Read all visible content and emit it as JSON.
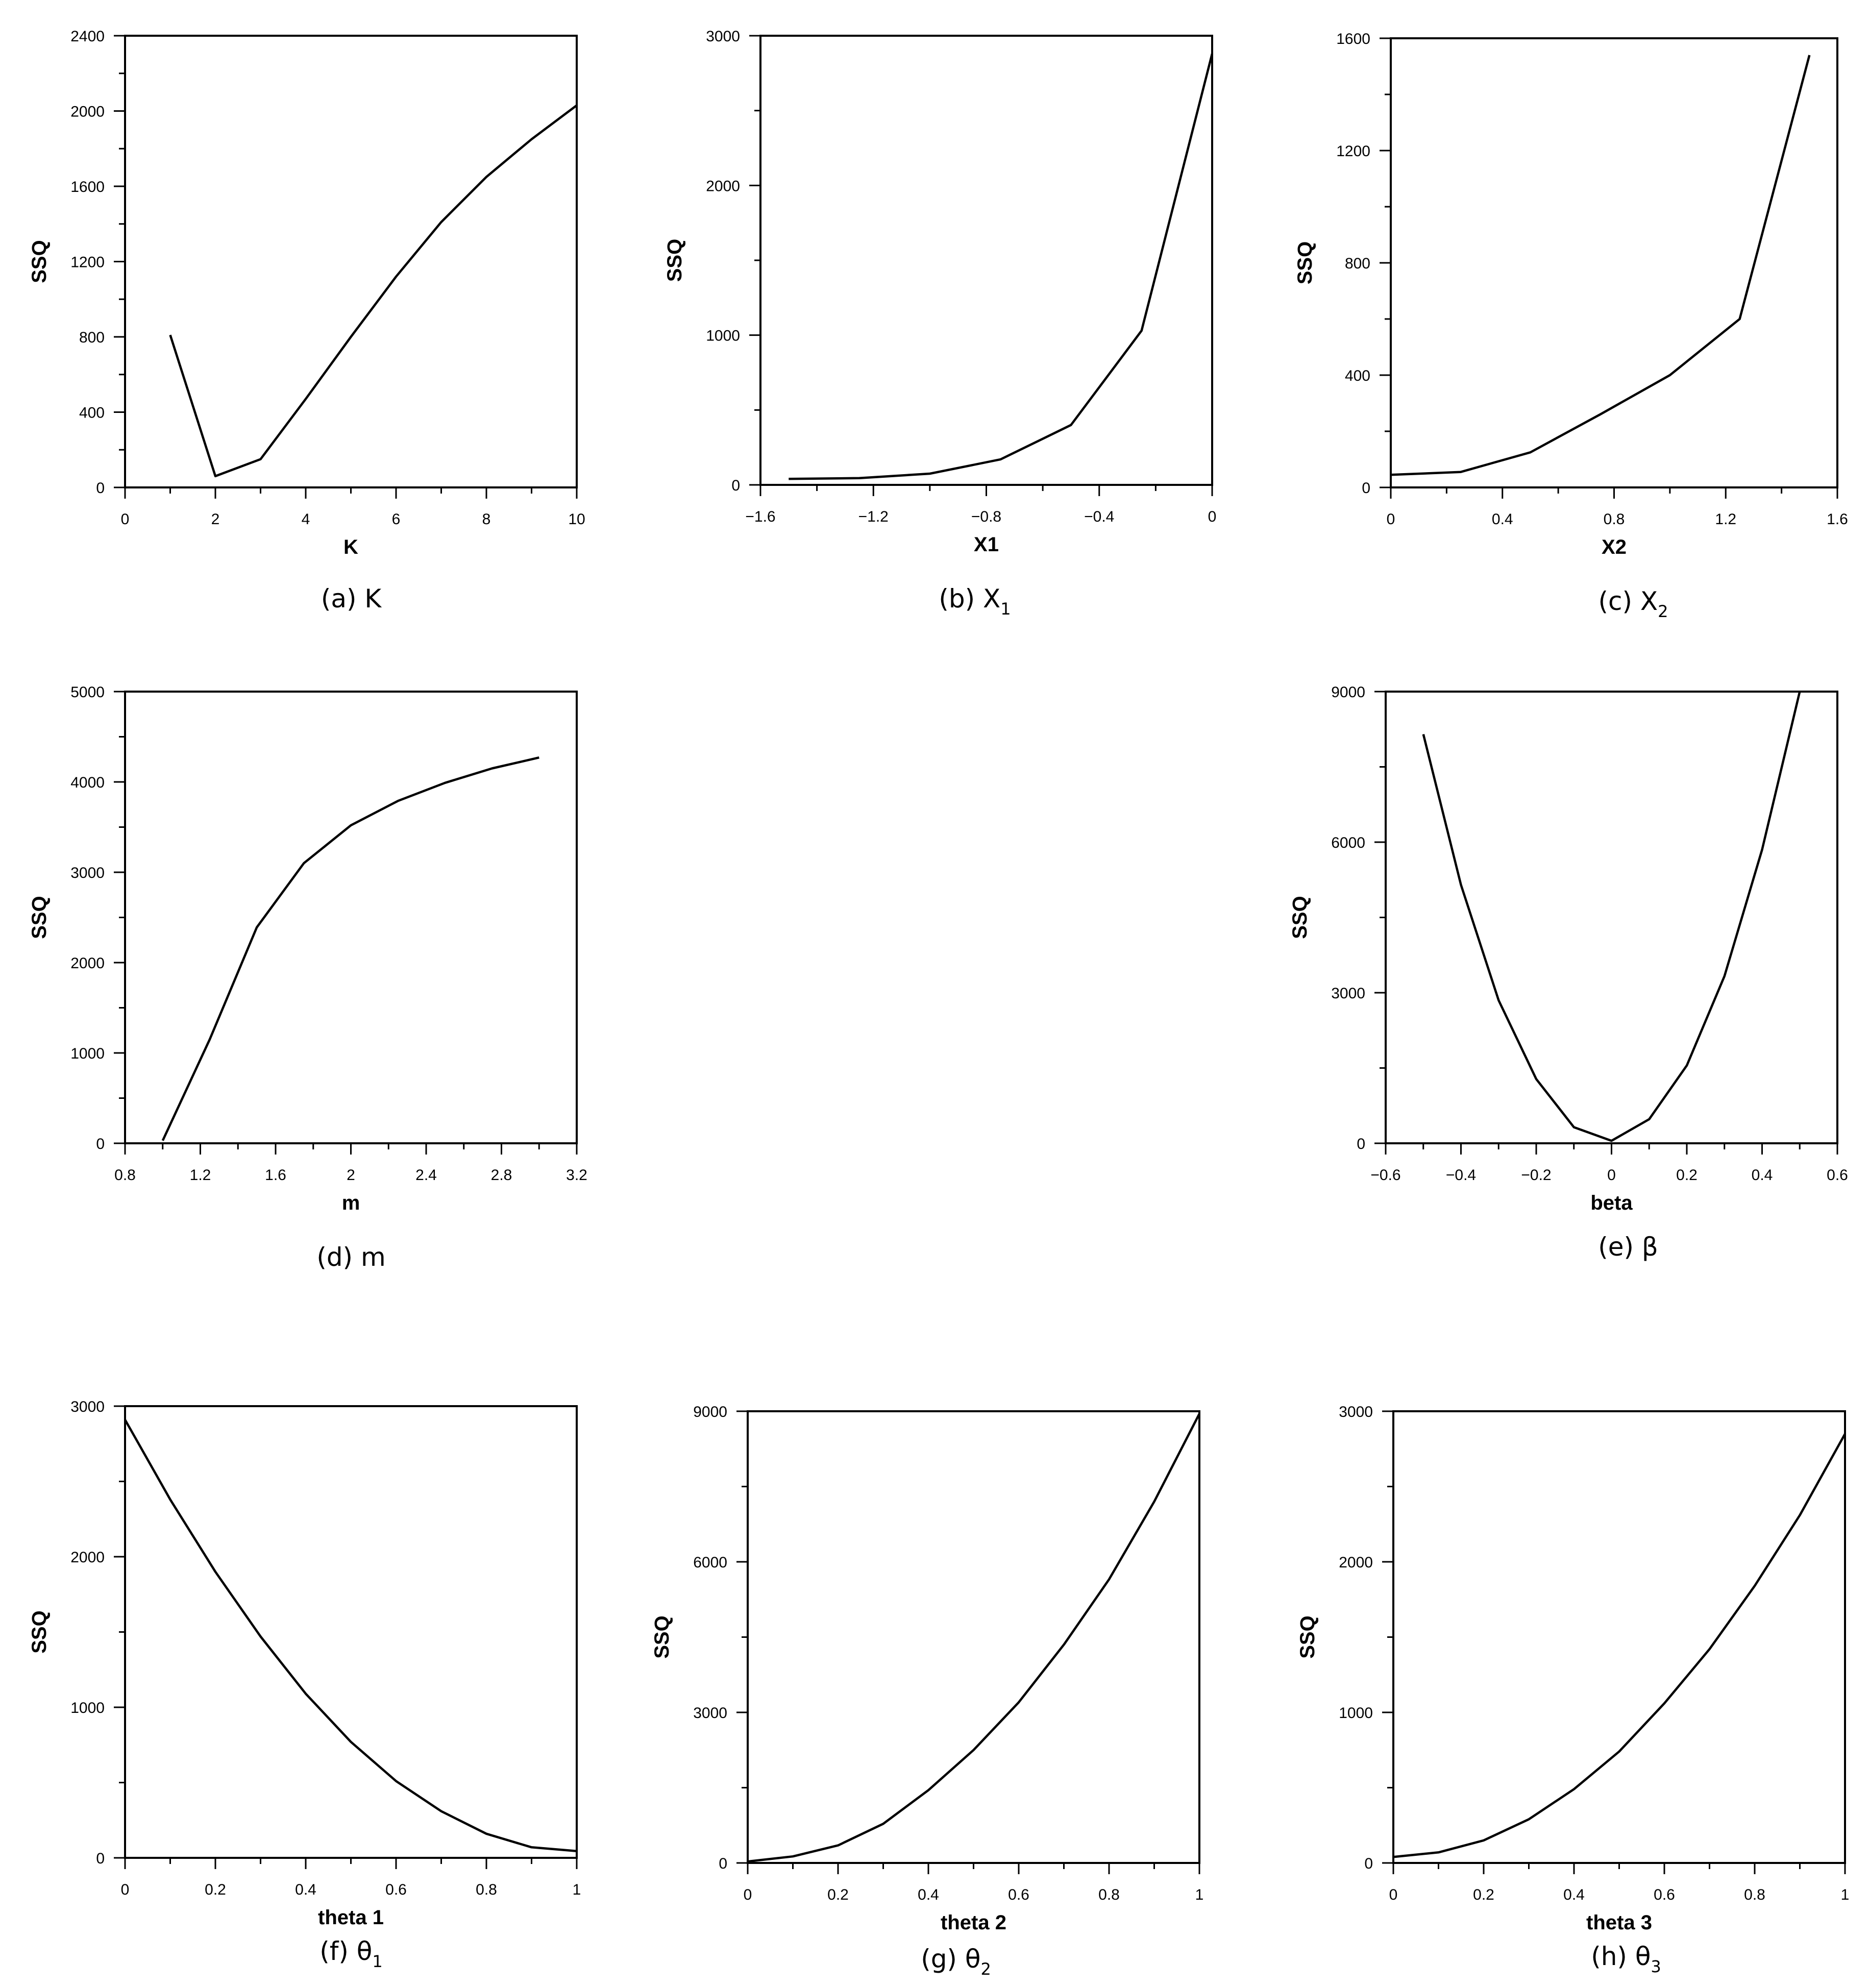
{
  "chart_data": [
    {
      "type": "line",
      "caption": "(a) K",
      "xlabel": "K",
      "ylabel": "SSQ",
      "xlim": [
        0,
        10
      ],
      "ylim": [
        0,
        2400
      ],
      "x_ticks": [
        0,
        2,
        4,
        6,
        8,
        10
      ],
      "x_tick_labels": [
        "0",
        "2",
        "4",
        "6",
        "8",
        "10"
      ],
      "y_ticks": [
        0,
        400,
        800,
        1200,
        1600,
        2000,
        2400
      ],
      "y_tick_labels": [
        "0",
        "400",
        "800",
        "1200",
        "1600",
        "2000",
        "2400"
      ],
      "series": [
        {
          "x": [
            1,
            2,
            3,
            4,
            5,
            6,
            7,
            8,
            9,
            10
          ],
          "y": [
            810,
            60,
            150,
            470,
            800,
            1120,
            1410,
            1650,
            1850,
            2030
          ]
        }
      ]
    },
    {
      "type": "line",
      "caption": "(b) X",
      "caption_sub": "1",
      "xlabel": "X1",
      "ylabel": "SSQ",
      "xlim": [
        -1.6,
        0
      ],
      "ylim": [
        0,
        3000
      ],
      "x_ticks": [
        -1.6,
        -1.2,
        -0.8,
        -0.4,
        0
      ],
      "x_tick_labels": [
        "−1.6",
        "−1.2",
        "−0.8",
        "−0.4",
        "0"
      ],
      "y_ticks": [
        0,
        1000,
        2000,
        3000
      ],
      "y_tick_labels": [
        "0",
        "1000",
        "2000",
        "3000"
      ],
      "series": [
        {
          "x": [
            -1.5,
            -1.25,
            -1.0,
            -0.75,
            -0.5,
            -0.25,
            0
          ],
          "y": [
            40,
            45,
            75,
            170,
            400,
            1030,
            2880
          ]
        }
      ]
    },
    {
      "type": "line",
      "caption": "(c) X",
      "caption_sub": "2",
      "xlabel": "X2",
      "ylabel": "SSQ",
      "xlim": [
        0,
        1.6
      ],
      "ylim": [
        0,
        1600
      ],
      "x_ticks": [
        0,
        0.4,
        0.8,
        1.2,
        1.6
      ],
      "x_tick_labels": [
        "0",
        "0.4",
        "0.8",
        "1.2",
        "1.6"
      ],
      "y_ticks": [
        0,
        400,
        800,
        1200,
        1600
      ],
      "y_tick_labels": [
        "0",
        "400",
        "800",
        "1200",
        "1600"
      ],
      "series": [
        {
          "x": [
            0,
            0.25,
            0.5,
            0.75,
            1.0,
            1.25,
            1.5
          ],
          "y": [
            45,
            55,
            125,
            260,
            400,
            600,
            1540
          ]
        }
      ]
    },
    {
      "type": "line",
      "caption": "(d) m",
      "xlabel": "m",
      "ylabel": "SSQ",
      "xlim": [
        0.8,
        3.2
      ],
      "ylim": [
        0,
        5000
      ],
      "x_ticks": [
        0.8,
        1.2,
        1.6,
        2.0,
        2.4,
        2.8,
        3.2
      ],
      "x_tick_labels": [
        "0.8",
        "1.2",
        "1.6",
        "2",
        "2.4",
        "2.8",
        "3.2"
      ],
      "y_ticks": [
        0,
        1000,
        2000,
        3000,
        4000,
        5000
      ],
      "y_tick_labels": [
        "0",
        "1000",
        "2000",
        "3000",
        "4000",
        "5000"
      ],
      "series": [
        {
          "x": [
            1.0,
            1.25,
            1.5,
            1.75,
            2.0,
            2.25,
            2.5,
            2.75,
            3.0
          ],
          "y": [
            30,
            1150,
            2390,
            3100,
            3520,
            3790,
            3990,
            4150,
            4270
          ]
        }
      ]
    },
    {
      "type": "line",
      "caption": "(e) β",
      "xlabel": "beta",
      "ylabel": "SSQ",
      "xlim": [
        -0.6,
        0.6
      ],
      "ylim": [
        0,
        9000
      ],
      "x_ticks": [
        -0.6,
        -0.4,
        -0.2,
        0,
        0.2,
        0.4,
        0.6
      ],
      "x_tick_labels": [
        "−0.6",
        "−0.4",
        "−0.2",
        "0",
        "0.2",
        "0.4",
        "0.6"
      ],
      "y_ticks": [
        0,
        3000,
        6000,
        9000
      ],
      "y_tick_labels": [
        "0",
        "3000",
        "6000",
        "9000"
      ],
      "series": [
        {
          "x": [
            -0.5,
            -0.4,
            -0.3,
            -0.2,
            -0.1,
            0,
            0.1,
            0.2,
            0.3,
            0.4,
            0.5
          ],
          "y": [
            8150,
            5150,
            2850,
            1280,
            320,
            50,
            480,
            1550,
            3330,
            5850,
            9000
          ]
        }
      ]
    },
    {
      "type": "line",
      "caption": "(f) θ",
      "caption_sub": "1",
      "xlabel": "theta 1",
      "ylabel": "SSQ",
      "xlim": [
        0,
        1
      ],
      "ylim": [
        0,
        3000
      ],
      "x_ticks": [
        0,
        0.2,
        0.4,
        0.6,
        0.8,
        1
      ],
      "x_tick_labels": [
        "0",
        "0.2",
        "0.4",
        "0.6",
        "0.8",
        "1"
      ],
      "y_ticks": [
        0,
        1000,
        2000,
        3000
      ],
      "y_tick_labels": [
        "0",
        "1000",
        "2000",
        "3000"
      ],
      "series": [
        {
          "x": [
            0,
            0.1,
            0.2,
            0.3,
            0.4,
            0.5,
            0.6,
            0.7,
            0.8,
            0.9,
            1.0
          ],
          "y": [
            2910,
            2380,
            1900,
            1470,
            1090,
            770,
            510,
            310,
            160,
            70,
            45
          ]
        }
      ]
    },
    {
      "type": "line",
      "caption": "(g) θ",
      "caption_sub": "2",
      "xlabel": "theta 2",
      "ylabel": "SSQ",
      "xlim": [
        0,
        1
      ],
      "ylim": [
        0,
        9000
      ],
      "x_ticks": [
        0,
        0.2,
        0.4,
        0.6,
        0.8,
        1
      ],
      "x_tick_labels": [
        "0",
        "0.2",
        "0.4",
        "0.6",
        "0.8",
        "1"
      ],
      "y_ticks": [
        0,
        3000,
        6000,
        9000
      ],
      "y_tick_labels": [
        "0",
        "3000",
        "6000",
        "9000"
      ],
      "series": [
        {
          "x": [
            0,
            0.1,
            0.2,
            0.3,
            0.4,
            0.5,
            0.6,
            0.7,
            0.8,
            0.9,
            1.0
          ],
          "y": [
            30,
            130,
            350,
            780,
            1450,
            2250,
            3200,
            4350,
            5650,
            7200,
            8950
          ]
        }
      ]
    },
    {
      "type": "line",
      "caption": "(h) θ",
      "caption_sub": "3",
      "xlabel": "theta 3",
      "ylabel": "SSQ",
      "xlim": [
        0,
        1
      ],
      "ylim": [
        0,
        3000
      ],
      "x_ticks": [
        0,
        0.2,
        0.4,
        0.6,
        0.8,
        1
      ],
      "x_tick_labels": [
        "0",
        "0.2",
        "0.4",
        "0.6",
        "0.8",
        "1"
      ],
      "y_ticks": [
        0,
        1000,
        2000,
        3000
      ],
      "y_tick_labels": [
        "0",
        "1000",
        "2000",
        "3000"
      ],
      "series": [
        {
          "x": [
            0,
            0.1,
            0.2,
            0.3,
            0.4,
            0.5,
            0.6,
            0.7,
            0.8,
            0.9,
            1.0
          ],
          "y": [
            40,
            70,
            150,
            290,
            490,
            740,
            1060,
            1420,
            1840,
            2310,
            2850
          ]
        }
      ]
    }
  ]
}
